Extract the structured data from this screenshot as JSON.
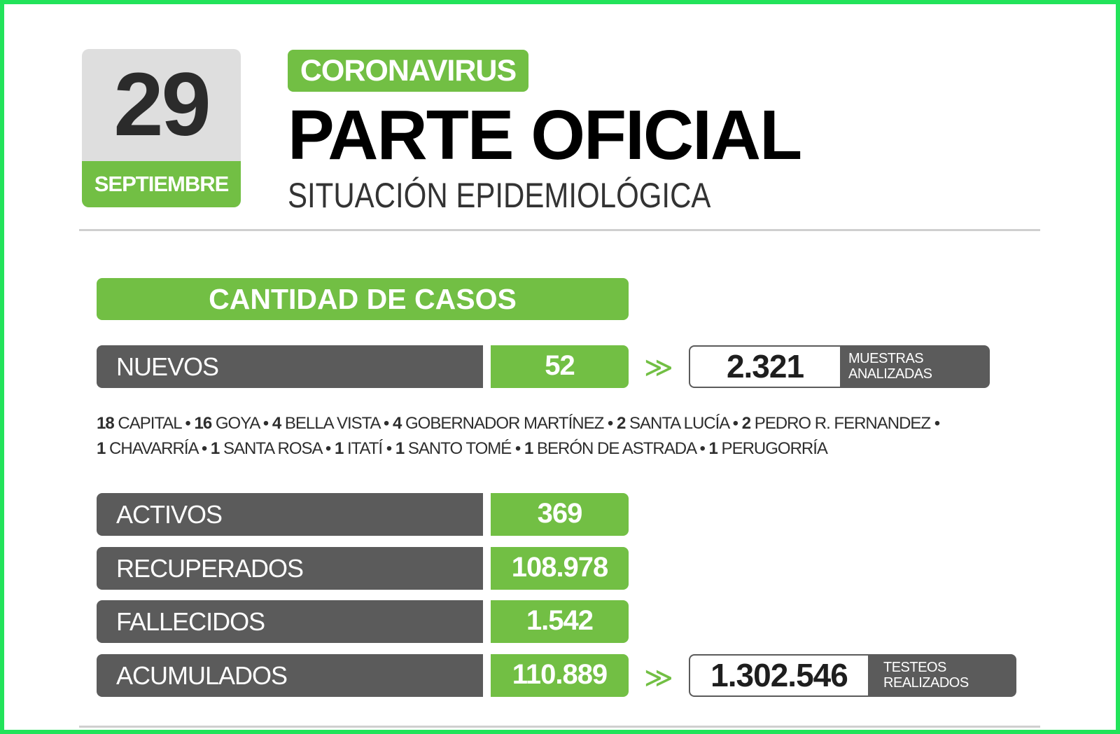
{
  "date": {
    "day": "29",
    "month": "SEPTIEMBRE"
  },
  "header": {
    "tag": "CORONAVIRUS",
    "title": "PARTE OFICIAL",
    "subtitle": "SITUACIÓN EPIDEMIOLÓGICA"
  },
  "section": {
    "title": "CANTIDAD DE CASOS"
  },
  "rows": {
    "nuevos": {
      "label": "NUEVOS",
      "value": "52"
    },
    "activos": {
      "label": "ACTIVOS",
      "value": "369"
    },
    "recuperados": {
      "label": "RECUPERADOS",
      "value": "108.978"
    },
    "fallecidos": {
      "label": "FALLECIDOS",
      "value": "1.542"
    },
    "acumulados": {
      "label": "ACUMULADOS",
      "value": "110.889"
    }
  },
  "stats": {
    "muestras": {
      "value": "2.321",
      "line1": "MUESTRAS",
      "line2": "ANALIZADAS"
    },
    "testeos": {
      "value": "1.302.546",
      "line1": "TESTEOS",
      "line2": "REALIZADOS"
    }
  },
  "chevron": "≫",
  "separator": " • ",
  "localities": [
    {
      "count": "18",
      "name": "CAPITAL"
    },
    {
      "count": "16",
      "name": "GOYA"
    },
    {
      "count": "4",
      "name": "BELLA VISTA"
    },
    {
      "count": "4",
      "name": "GOBERNADOR MARTÍNEZ"
    },
    {
      "count": "2",
      "name": "SANTA LUCÍA"
    },
    {
      "count": "2",
      "name": "PEDRO R. FERNANDEZ"
    },
    {
      "count": "1",
      "name": "CHAVARRÍA"
    },
    {
      "count": "1",
      "name": "SANTA ROSA"
    },
    {
      "count": "1",
      "name": "ITATÍ"
    },
    {
      "count": "1",
      "name": "SANTO TOMÉ"
    },
    {
      "count": "1",
      "name": "BERÓN DE ASTRADA"
    },
    {
      "count": "1",
      "name": "PERUGORRÍA"
    }
  ]
}
